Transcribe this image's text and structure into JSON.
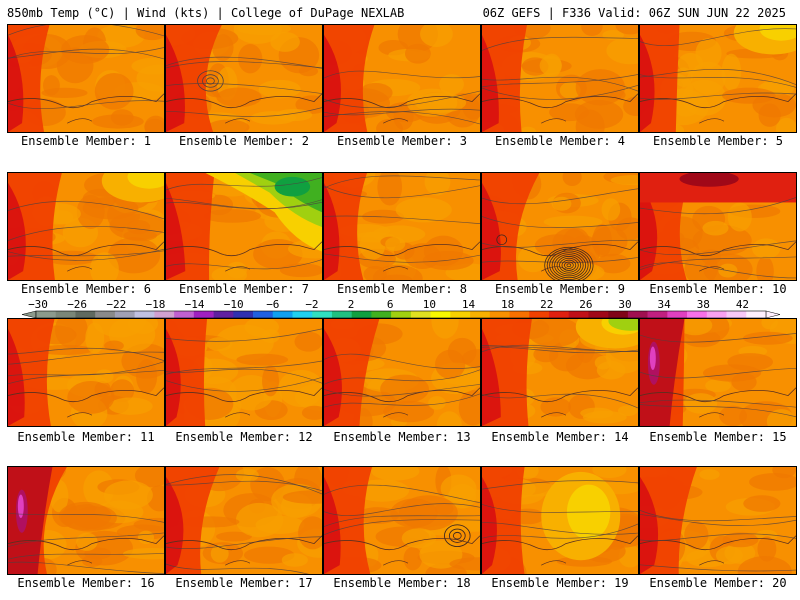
{
  "header": {
    "left": "850mb Temp (°C) | Wind (kts) | College of DuPage NEXLAB",
    "right": "06Z GEFS | F336 Valid: 06Z SUN JUN 22 2025"
  },
  "members": [
    {
      "label": "Ensemble Member: 1",
      "tone": "hot-west"
    },
    {
      "label": "Ensemble Member: 2",
      "tone": "low-center"
    },
    {
      "label": "Ensemble Member: 3",
      "tone": "hot-west"
    },
    {
      "label": "Ensemble Member: 4",
      "tone": "hot-west"
    },
    {
      "label": "Ensemble Member: 5",
      "tone": "hot-west-yellow-ne"
    },
    {
      "label": "Ensemble Member: 6",
      "tone": "yellow-ne"
    },
    {
      "label": "Ensemble Member: 7",
      "tone": "cool-ne"
    },
    {
      "label": "Ensemble Member: 8",
      "tone": "hot-west"
    },
    {
      "label": "Ensemble Member: 9",
      "tone": "cyclone"
    },
    {
      "label": "Ensemble Member: 10",
      "tone": "hot-north"
    },
    {
      "label": "Ensemble Member: 11",
      "tone": "hot-west"
    },
    {
      "label": "Ensemble Member: 12",
      "tone": "hot-west"
    },
    {
      "label": "Ensemble Member: 13",
      "tone": "mild"
    },
    {
      "label": "Ensemble Member: 14",
      "tone": "yellow-ne"
    },
    {
      "label": "Ensemble Member: 15",
      "tone": "very-hot-west"
    },
    {
      "label": "Ensemble Member: 16",
      "tone": "very-hot-west"
    },
    {
      "label": "Ensemble Member: 17",
      "tone": "hot-west"
    },
    {
      "label": "Ensemble Member: 18",
      "tone": "low-se"
    },
    {
      "label": "Ensemble Member: 19",
      "tone": "yellow-center"
    },
    {
      "label": "Ensemble Member: 20",
      "tone": "hot-west"
    }
  ],
  "colorbar": {
    "ticks": [
      "−30",
      "−26",
      "−22",
      "−18",
      "−14",
      "−10",
      "−6",
      "−2",
      "2",
      "6",
      "10",
      "14",
      "18",
      "22",
      "26",
      "30",
      "34",
      "38",
      "42"
    ],
    "colors": [
      "#8c9a8c",
      "#7a8678",
      "#606a60",
      "#8a8a8a",
      "#a0a0b4",
      "#c0c0e0",
      "#d0a0d0",
      "#c060d0",
      "#a020c0",
      "#6020a0",
      "#3030b0",
      "#2060e0",
      "#10a0f0",
      "#20d0f0",
      "#30e0c0",
      "#20c080",
      "#10a040",
      "#40b020",
      "#a0d010",
      "#e0e020",
      "#f8f800",
      "#f8d000",
      "#f8b000",
      "#f89000",
      "#f87000",
      "#f04000",
      "#e02010",
      "#c01018",
      "#a00818",
      "#800418",
      "#a01050",
      "#c02080",
      "#e040c0",
      "#f870e8",
      "#f8a0f0",
      "#f8c8f8",
      "#fff0ff"
    ],
    "accent": "#f08000"
  }
}
